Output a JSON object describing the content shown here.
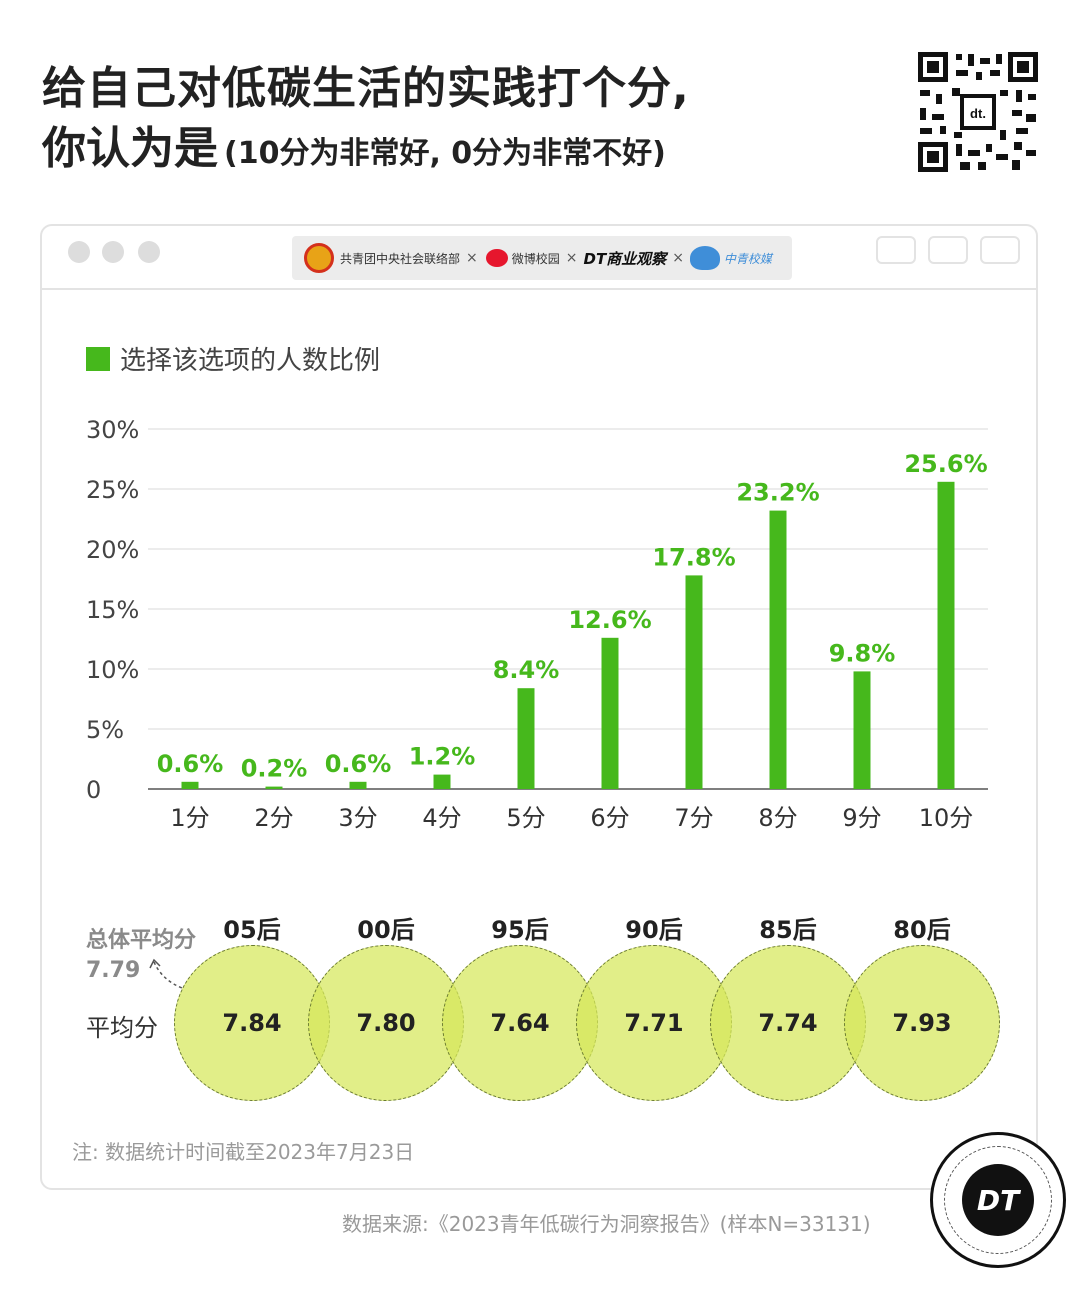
{
  "title": {
    "line1": "给自己对低碳生活的实践打个分,",
    "line2_main": "你认为是",
    "line2_sub": "(10分为非常好, 0分为非常不好)"
  },
  "logos": {
    "org1": "共青团中央社会联络部",
    "sep": "×",
    "org2": "微博校园",
    "org3": "DT商业观察",
    "org4": "中青校媒"
  },
  "legend": {
    "label": "选择该选项的人数比例",
    "color": "#46b81c"
  },
  "chart_data": {
    "type": "bar",
    "categories": [
      "1分",
      "2分",
      "3分",
      "4分",
      "5分",
      "6分",
      "7分",
      "8分",
      "9分",
      "10分"
    ],
    "values": [
      0.6,
      0.2,
      0.6,
      1.2,
      8.4,
      12.6,
      17.8,
      23.2,
      9.8,
      25.6
    ],
    "value_labels": [
      "0.6%",
      "0.2%",
      "0.6%",
      "1.2%",
      "8.4%",
      "12.6%",
      "17.8%",
      "23.2%",
      "9.8%",
      "25.6%"
    ],
    "yticks": [
      0,
      5,
      10,
      15,
      20,
      25,
      30
    ],
    "ytick_labels": [
      "0",
      "5%",
      "10%",
      "15%",
      "20%",
      "25%",
      "30%"
    ],
    "ylim": [
      0,
      30
    ],
    "grid": true,
    "bar_color": "#46b81c",
    "label_color": "#46b81c"
  },
  "averages": {
    "overall_label": "总体平均分",
    "overall_value": "7.79",
    "row_label": "平均分",
    "groups": [
      {
        "name": "05后",
        "value": "7.84"
      },
      {
        "name": "00后",
        "value": "7.80"
      },
      {
        "name": "95后",
        "value": "7.64"
      },
      {
        "name": "90后",
        "value": "7.71"
      },
      {
        "name": "85后",
        "value": "7.74"
      },
      {
        "name": "80后",
        "value": "7.93"
      }
    ]
  },
  "note": "注: 数据统计时间截至2023年7月23日",
  "source": "数据来源:《2023青年低碳行为洞察报告》(样本N=33131)",
  "badge": "DT",
  "qr_badge": "dt."
}
